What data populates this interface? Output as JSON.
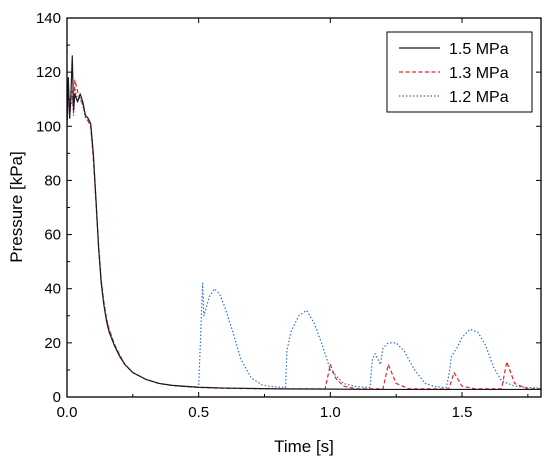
{
  "chart_data": {
    "type": "line",
    "title": "",
    "xlabel": "Time [s]",
    "ylabel": "Pressure [kPa]",
    "xlim": [
      0,
      1.8
    ],
    "ylim": [
      0,
      140
    ],
    "xticks": [
      0.0,
      0.5,
      1.0,
      1.5
    ],
    "xtick_labels": [
      "0.0",
      "0.5",
      "1.0",
      "1.5"
    ],
    "yticks": [
      0,
      20,
      40,
      60,
      80,
      100,
      120,
      140
    ],
    "ytick_labels": [
      "0",
      "20",
      "40",
      "60",
      "80",
      "100",
      "120",
      "140"
    ],
    "grid": false,
    "legend_position": "top-right",
    "series": [
      {
        "name": "1.5 MPa",
        "color": "#1a1a1a",
        "dash": "solid",
        "x": [
          0.0,
          0.005,
          0.01,
          0.015,
          0.02,
          0.025,
          0.03,
          0.04,
          0.05,
          0.06,
          0.07,
          0.08,
          0.09,
          0.1,
          0.11,
          0.12,
          0.13,
          0.14,
          0.15,
          0.16,
          0.18,
          0.2,
          0.22,
          0.25,
          0.3,
          0.35,
          0.4,
          0.5,
          0.6,
          0.8,
          1.0,
          1.2,
          1.4,
          1.6,
          1.8
        ],
        "y": [
          101,
          118,
          103,
          112,
          126,
          106,
          112,
          109,
          112,
          109,
          104,
          103,
          101,
          90,
          73,
          55,
          42,
          34,
          28,
          24,
          19,
          15,
          12,
          9,
          6.5,
          5,
          4.3,
          3.6,
          3.3,
          3,
          2.9,
          2.8,
          2.8,
          2.8,
          2.8
        ]
      },
      {
        "name": "1.3 MPa",
        "color": "#e8232a",
        "dash": "dashed",
        "x": [
          0.0,
          0.005,
          0.01,
          0.015,
          0.02,
          0.025,
          0.03,
          0.04,
          0.05,
          0.06,
          0.07,
          0.08,
          0.09,
          0.1,
          0.11,
          0.12,
          0.13,
          0.14,
          0.15,
          0.16,
          0.18,
          0.2,
          0.22,
          0.25,
          0.3,
          0.35,
          0.4,
          0.5,
          0.6,
          0.8,
          0.98,
          1.0,
          1.02,
          1.05,
          1.1,
          1.15,
          1.2,
          1.22,
          1.25,
          1.3,
          1.4,
          1.45,
          1.47,
          1.5,
          1.55,
          1.6,
          1.65,
          1.67,
          1.7,
          1.75,
          1.8
        ],
        "y": [
          100,
          116,
          103,
          110,
          113,
          105,
          117,
          113,
          110,
          108,
          104,
          102,
          100,
          88,
          72,
          56,
          43,
          35,
          29,
          25,
          19.5,
          15.5,
          12,
          9,
          6.5,
          5,
          4.2,
          3.5,
          3.2,
          3,
          3,
          12,
          7,
          4,
          3,
          3,
          3,
          12,
          5,
          3,
          3,
          3,
          9,
          4,
          3,
          3,
          3,
          13,
          5,
          3,
          3
        ]
      },
      {
        "name": "1.2 MPa",
        "color": "#2b6fd6",
        "dash": "dotted",
        "x": [
          0.0,
          0.005,
          0.01,
          0.015,
          0.02,
          0.025,
          0.03,
          0.04,
          0.05,
          0.06,
          0.07,
          0.08,
          0.09,
          0.1,
          0.11,
          0.12,
          0.13,
          0.14,
          0.15,
          0.16,
          0.18,
          0.2,
          0.22,
          0.25,
          0.3,
          0.35,
          0.4,
          0.45,
          0.5,
          0.515,
          0.52,
          0.54,
          0.56,
          0.58,
          0.6,
          0.63,
          0.66,
          0.7,
          0.74,
          0.78,
          0.83,
          0.835,
          0.85,
          0.88,
          0.91,
          0.94,
          0.97,
          1.0,
          1.05,
          1.1,
          1.15,
          1.16,
          1.17,
          1.19,
          1.2,
          1.22,
          1.25,
          1.28,
          1.32,
          1.36,
          1.4,
          1.44,
          1.45,
          1.46,
          1.48,
          1.5,
          1.53,
          1.56,
          1.59,
          1.62,
          1.65,
          1.7,
          1.75,
          1.8
        ],
        "y": [
          101,
          112,
          104,
          108,
          110,
          104,
          114,
          110,
          110,
          108,
          103,
          102,
          100,
          89,
          72,
          56,
          43,
          35,
          29,
          25,
          19.5,
          15.5,
          12,
          9,
          6.5,
          5,
          4.3,
          3.8,
          3.6,
          42,
          30,
          37,
          40,
          38,
          33,
          24,
          14,
          7,
          4.5,
          3.8,
          3.5,
          17,
          24,
          30,
          32,
          27,
          19,
          10,
          5,
          3.8,
          3.5,
          14,
          16,
          12,
          18,
          20,
          20,
          17,
          10,
          5,
          3.8,
          3.5,
          8,
          15,
          18,
          22,
          25,
          24,
          19,
          11,
          6,
          4,
          3.5,
          3.3
        ]
      }
    ]
  }
}
